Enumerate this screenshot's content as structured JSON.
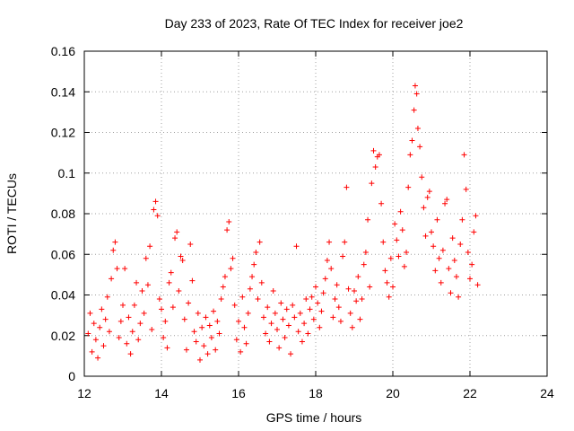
{
  "chart_data": {
    "type": "scatter",
    "title": "Day 233 of 2023, Rate Of TEC Index for receiver joe2",
    "xlabel": "GPS time / hours",
    "ylabel": "ROTI / TECUs",
    "xlim": [
      12,
      24
    ],
    "ylim": [
      0,
      0.16
    ],
    "x_ticks": [
      12,
      14,
      16,
      18,
      20,
      22,
      24
    ],
    "x_tick_labels": [
      "12",
      "14",
      "16",
      "18",
      "20",
      "22",
      "24"
    ],
    "y_ticks": [
      0,
      0.02,
      0.04,
      0.06,
      0.08,
      0.1,
      0.12,
      0.14,
      0.16
    ],
    "y_tick_labels": [
      "0",
      "0.02",
      "0.04",
      "0.06",
      "0.08",
      "0.1",
      "0.12",
      "0.14",
      "0.16"
    ],
    "grid": true,
    "marker": "plus",
    "color": "#ff0000",
    "series": [
      {
        "name": "ROTI",
        "points": [
          [
            12.1,
            0.021
          ],
          [
            12.15,
            0.031
          ],
          [
            12.2,
            0.012
          ],
          [
            12.25,
            0.026
          ],
          [
            12.3,
            0.018
          ],
          [
            12.35,
            0.009
          ],
          [
            12.4,
            0.024
          ],
          [
            12.45,
            0.033
          ],
          [
            12.5,
            0.015
          ],
          [
            12.55,
            0.028
          ],
          [
            12.6,
            0.039
          ],
          [
            12.65,
            0.022
          ],
          [
            12.7,
            0.048
          ],
          [
            12.75,
            0.062
          ],
          [
            12.8,
            0.066
          ],
          [
            12.85,
            0.053
          ],
          [
            12.9,
            0.019
          ],
          [
            12.95,
            0.027
          ],
          [
            13.0,
            0.035
          ],
          [
            13.05,
            0.053
          ],
          [
            13.1,
            0.016
          ],
          [
            13.15,
            0.029
          ],
          [
            13.2,
            0.011
          ],
          [
            13.25,
            0.022
          ],
          [
            13.3,
            0.035
          ],
          [
            13.35,
            0.046
          ],
          [
            13.4,
            0.018
          ],
          [
            13.45,
            0.026
          ],
          [
            13.5,
            0.042
          ],
          [
            13.55,
            0.031
          ],
          [
            13.6,
            0.058
          ],
          [
            13.65,
            0.045
          ],
          [
            13.7,
            0.064
          ],
          [
            13.75,
            0.023
          ],
          [
            13.8,
            0.082
          ],
          [
            13.85,
            0.086
          ],
          [
            13.9,
            0.079
          ],
          [
            13.95,
            0.038
          ],
          [
            14.0,
            0.033
          ],
          [
            14.05,
            0.019
          ],
          [
            14.1,
            0.027
          ],
          [
            14.15,
            0.014
          ],
          [
            14.2,
            0.046
          ],
          [
            14.25,
            0.051
          ],
          [
            14.3,
            0.034
          ],
          [
            14.35,
            0.068
          ],
          [
            14.4,
            0.071
          ],
          [
            14.45,
            0.042
          ],
          [
            14.5,
            0.059
          ],
          [
            14.55,
            0.057
          ],
          [
            14.6,
            0.028
          ],
          [
            14.65,
            0.013
          ],
          [
            14.7,
            0.036
          ],
          [
            14.75,
            0.065
          ],
          [
            14.8,
            0.047
          ],
          [
            14.85,
            0.022
          ],
          [
            14.9,
            0.017
          ],
          [
            14.95,
            0.031
          ],
          [
            15.0,
            0.008
          ],
          [
            15.05,
            0.024
          ],
          [
            15.1,
            0.015
          ],
          [
            15.15,
            0.029
          ],
          [
            15.2,
            0.011
          ],
          [
            15.25,
            0.025
          ],
          [
            15.3,
            0.019
          ],
          [
            15.35,
            0.032
          ],
          [
            15.4,
            0.013
          ],
          [
            15.45,
            0.027
          ],
          [
            15.5,
            0.021
          ],
          [
            15.55,
            0.038
          ],
          [
            15.6,
            0.044
          ],
          [
            15.65,
            0.049
          ],
          [
            15.7,
            0.072
          ],
          [
            15.75,
            0.076
          ],
          [
            15.8,
            0.053
          ],
          [
            15.85,
            0.058
          ],
          [
            15.9,
            0.035
          ],
          [
            15.95,
            0.018
          ],
          [
            16.0,
            0.027
          ],
          [
            16.05,
            0.012
          ],
          [
            16.1,
            0.039
          ],
          [
            16.15,
            0.024
          ],
          [
            16.2,
            0.016
          ],
          [
            16.25,
            0.031
          ],
          [
            16.3,
            0.043
          ],
          [
            16.35,
            0.049
          ],
          [
            16.4,
            0.055
          ],
          [
            16.45,
            0.061
          ],
          [
            16.5,
            0.038
          ],
          [
            16.55,
            0.066
          ],
          [
            16.6,
            0.046
          ],
          [
            16.65,
            0.029
          ],
          [
            16.7,
            0.021
          ],
          [
            16.75,
            0.034
          ],
          [
            16.8,
            0.017
          ],
          [
            16.85,
            0.026
          ],
          [
            16.9,
            0.042
          ],
          [
            16.95,
            0.031
          ],
          [
            17.0,
            0.023
          ],
          [
            17.05,
            0.014
          ],
          [
            17.1,
            0.036
          ],
          [
            17.15,
            0.028
          ],
          [
            17.2,
            0.019
          ],
          [
            17.25,
            0.033
          ],
          [
            17.3,
            0.025
          ],
          [
            17.35,
            0.011
          ],
          [
            17.4,
            0.035
          ],
          [
            17.45,
            0.029
          ],
          [
            17.5,
            0.064
          ],
          [
            17.55,
            0.022
          ],
          [
            17.6,
            0.031
          ],
          [
            17.65,
            0.017
          ],
          [
            17.7,
            0.026
          ],
          [
            17.75,
            0.038
          ],
          [
            17.8,
            0.021
          ],
          [
            17.85,
            0.033
          ],
          [
            17.9,
            0.039
          ],
          [
            17.95,
            0.028
          ],
          [
            18.0,
            0.044
          ],
          [
            18.05,
            0.036
          ],
          [
            18.1,
            0.024
          ],
          [
            18.15,
            0.032
          ],
          [
            18.2,
            0.041
          ],
          [
            18.25,
            0.048
          ],
          [
            18.3,
            0.057
          ],
          [
            18.35,
            0.066
          ],
          [
            18.4,
            0.053
          ],
          [
            18.45,
            0.029
          ],
          [
            18.5,
            0.038
          ],
          [
            18.55,
            0.045
          ],
          [
            18.6,
            0.034
          ],
          [
            18.65,
            0.027
          ],
          [
            18.7,
            0.059
          ],
          [
            18.75,
            0.066
          ],
          [
            18.8,
            0.093
          ],
          [
            18.85,
            0.043
          ],
          [
            18.9,
            0.031
          ],
          [
            18.95,
            0.024
          ],
          [
            19.0,
            0.042
          ],
          [
            19.05,
            0.037
          ],
          [
            19.1,
            0.049
          ],
          [
            19.15,
            0.028
          ],
          [
            19.2,
            0.038
          ],
          [
            19.25,
            0.055
          ],
          [
            19.3,
            0.061
          ],
          [
            19.35,
            0.077
          ],
          [
            19.4,
            0.044
          ],
          [
            19.45,
            0.095
          ],
          [
            19.5,
            0.111
          ],
          [
            19.55,
            0.103
          ],
          [
            19.6,
            0.108
          ],
          [
            19.65,
            0.109
          ],
          [
            19.7,
            0.085
          ],
          [
            19.75,
            0.066
          ],
          [
            19.8,
            0.052
          ],
          [
            19.85,
            0.046
          ],
          [
            19.9,
            0.039
          ],
          [
            19.95,
            0.058
          ],
          [
            20.0,
            0.044
          ],
          [
            20.05,
            0.075
          ],
          [
            20.1,
            0.067
          ],
          [
            20.15,
            0.059
          ],
          [
            20.2,
            0.081
          ],
          [
            20.25,
            0.072
          ],
          [
            20.3,
            0.054
          ],
          [
            20.35,
            0.061
          ],
          [
            20.4,
            0.093
          ],
          [
            20.45,
            0.109
          ],
          [
            20.5,
            0.116
          ],
          [
            20.55,
            0.131
          ],
          [
            20.58,
            0.143
          ],
          [
            20.62,
            0.139
          ],
          [
            20.65,
            0.122
          ],
          [
            20.7,
            0.113
          ],
          [
            20.75,
            0.098
          ],
          [
            20.8,
            0.083
          ],
          [
            20.85,
            0.069
          ],
          [
            20.9,
            0.088
          ],
          [
            20.95,
            0.091
          ],
          [
            21.0,
            0.071
          ],
          [
            21.05,
            0.064
          ],
          [
            21.1,
            0.052
          ],
          [
            21.15,
            0.077
          ],
          [
            21.2,
            0.058
          ],
          [
            21.25,
            0.046
          ],
          [
            21.3,
            0.062
          ],
          [
            21.35,
            0.085
          ],
          [
            21.4,
            0.087
          ],
          [
            21.45,
            0.053
          ],
          [
            21.5,
            0.041
          ],
          [
            21.55,
            0.068
          ],
          [
            21.6,
            0.057
          ],
          [
            21.65,
            0.049
          ],
          [
            21.7,
            0.039
          ],
          [
            21.75,
            0.065
          ],
          [
            21.8,
            0.077
          ],
          [
            21.85,
            0.109
          ],
          [
            21.9,
            0.092
          ],
          [
            21.95,
            0.061
          ],
          [
            22.0,
            0.048
          ],
          [
            22.05,
            0.055
          ],
          [
            22.1,
            0.071
          ],
          [
            22.15,
            0.079
          ],
          [
            22.2,
            0.045
          ]
        ]
      }
    ]
  }
}
